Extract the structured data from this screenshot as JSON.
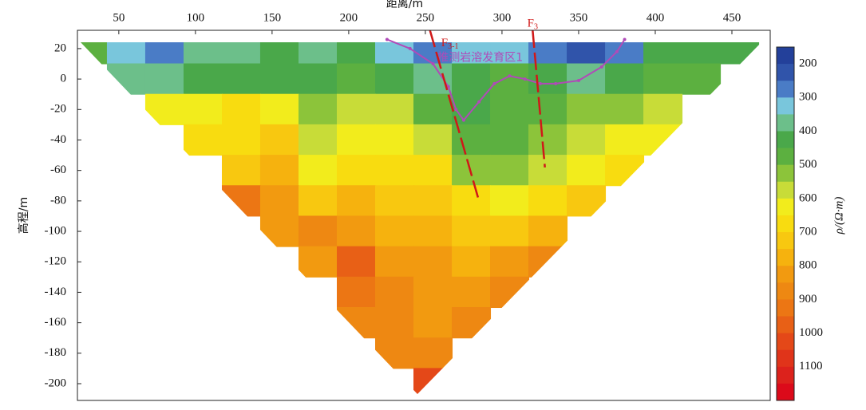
{
  "chart_data": {
    "type": "contour",
    "x_label": "距离/m",
    "y_label": "高程/m",
    "colorbar_label": "ρ/(Ω·m)",
    "xlim": [
      23,
      475
    ],
    "ylim": [
      -211,
      32
    ],
    "xticks": [
      50,
      100,
      150,
      200,
      250,
      300,
      350,
      400,
      450
    ],
    "yticks": [
      20,
      0,
      -20,
      -40,
      -60,
      -80,
      -100,
      -120,
      -140,
      -160,
      -180,
      -200
    ],
    "grid": {
      "x": [
        30,
        55,
        80,
        105,
        130,
        155,
        180,
        205,
        230,
        255,
        280,
        305,
        330,
        355,
        380,
        405,
        430,
        455
      ],
      "y": [
        20,
        0,
        -20,
        -40,
        -60,
        -80,
        -100,
        -120,
        -140,
        -160,
        -180,
        -200
      ],
      "z": [
        [
          450,
          300,
          250,
          350,
          380,
          400,
          350,
          400,
          300,
          250,
          300,
          300,
          250,
          200,
          250,
          400,
          400,
          400
        ],
        [
          null,
          350,
          350,
          400,
          420,
          400,
          400,
          450,
          400,
          350,
          400,
          450,
          400,
          380,
          420,
          450,
          450,
          null
        ],
        [
          null,
          null,
          600,
          600,
          650,
          600,
          500,
          550,
          550,
          450,
          400,
          450,
          450,
          500,
          500,
          550,
          null,
          null
        ],
        [
          null,
          null,
          null,
          650,
          650,
          700,
          550,
          600,
          600,
          550,
          450,
          450,
          500,
          550,
          600,
          600,
          null,
          null
        ],
        [
          null,
          null,
          null,
          null,
          700,
          750,
          600,
          650,
          650,
          650,
          500,
          500,
          550,
          600,
          650,
          null,
          null,
          null
        ],
        [
          null,
          null,
          null,
          null,
          900,
          800,
          700,
          750,
          700,
          700,
          650,
          600,
          650,
          700,
          null,
          null,
          null,
          null
        ],
        [
          null,
          null,
          null,
          null,
          null,
          800,
          850,
          800,
          750,
          750,
          700,
          700,
          750,
          null,
          null,
          null,
          null,
          null
        ],
        [
          null,
          null,
          null,
          null,
          null,
          null,
          800,
          950,
          800,
          800,
          750,
          800,
          850,
          null,
          null,
          null,
          null,
          null
        ],
        [
          null,
          null,
          null,
          null,
          null,
          null,
          null,
          900,
          850,
          800,
          800,
          850,
          null,
          null,
          null,
          null,
          null,
          null
        ],
        [
          null,
          null,
          null,
          null,
          null,
          null,
          null,
          850,
          850,
          800,
          850,
          null,
          null,
          null,
          null,
          null,
          null,
          null
        ],
        [
          null,
          null,
          null,
          null,
          null,
          null,
          null,
          null,
          850,
          850,
          null,
          null,
          null,
          null,
          null,
          null,
          null,
          null
        ],
        [
          null,
          null,
          null,
          null,
          null,
          null,
          null,
          null,
          null,
          1000,
          null,
          null,
          null,
          null,
          null,
          null,
          null,
          null
        ]
      ]
    },
    "colorbar": {
      "levels": [
        150,
        200,
        250,
        300,
        350,
        400,
        450,
        500,
        550,
        600,
        650,
        700,
        750,
        800,
        850,
        900,
        950,
        1000,
        1050,
        1100,
        1150,
        1200
      ],
      "colors": [
        "#23409a",
        "#3054aa",
        "#4a7cc6",
        "#79c6dc",
        "#6cbf8a",
        "#4aa84a",
        "#5cb040",
        "#8cc43a",
        "#c8dc38",
        "#f2ec1c",
        "#f8dc10",
        "#f8c810",
        "#f6b20e",
        "#f29a10",
        "#ee8812",
        "#ec7614",
        "#e86016",
        "#e44818",
        "#e0341a",
        "#dc221c",
        "#dc0a1a"
      ],
      "ticks": [
        200,
        300,
        400,
        500,
        600,
        700,
        800,
        900,
        1000,
        1100
      ]
    },
    "faults": [
      {
        "label": "F",
        "sub": "3-1",
        "x": [
          253,
          285
        ],
        "y": [
          32,
          -80
        ],
        "label_x": 266,
        "label_y": 23
      },
      {
        "label": "F",
        "sub": "3",
        "x": [
          320,
          328
        ],
        "y": [
          32,
          -58
        ],
        "label_x": 320,
        "label_y": 36
      }
    ],
    "karst_outline": {
      "text": "推测岩溶发育区1",
      "text_x": 258,
      "text_y": 14,
      "color": "#b04ab8",
      "x": [
        225,
        240,
        255,
        265,
        270,
        275,
        285,
        295,
        305,
        315,
        325,
        335,
        350,
        365,
        375,
        380
      ],
      "y": [
        26,
        20,
        10,
        -5,
        -20,
        -27,
        -15,
        -3,
        2,
        0,
        -3,
        -3,
        -1,
        8,
        18,
        26
      ]
    }
  }
}
